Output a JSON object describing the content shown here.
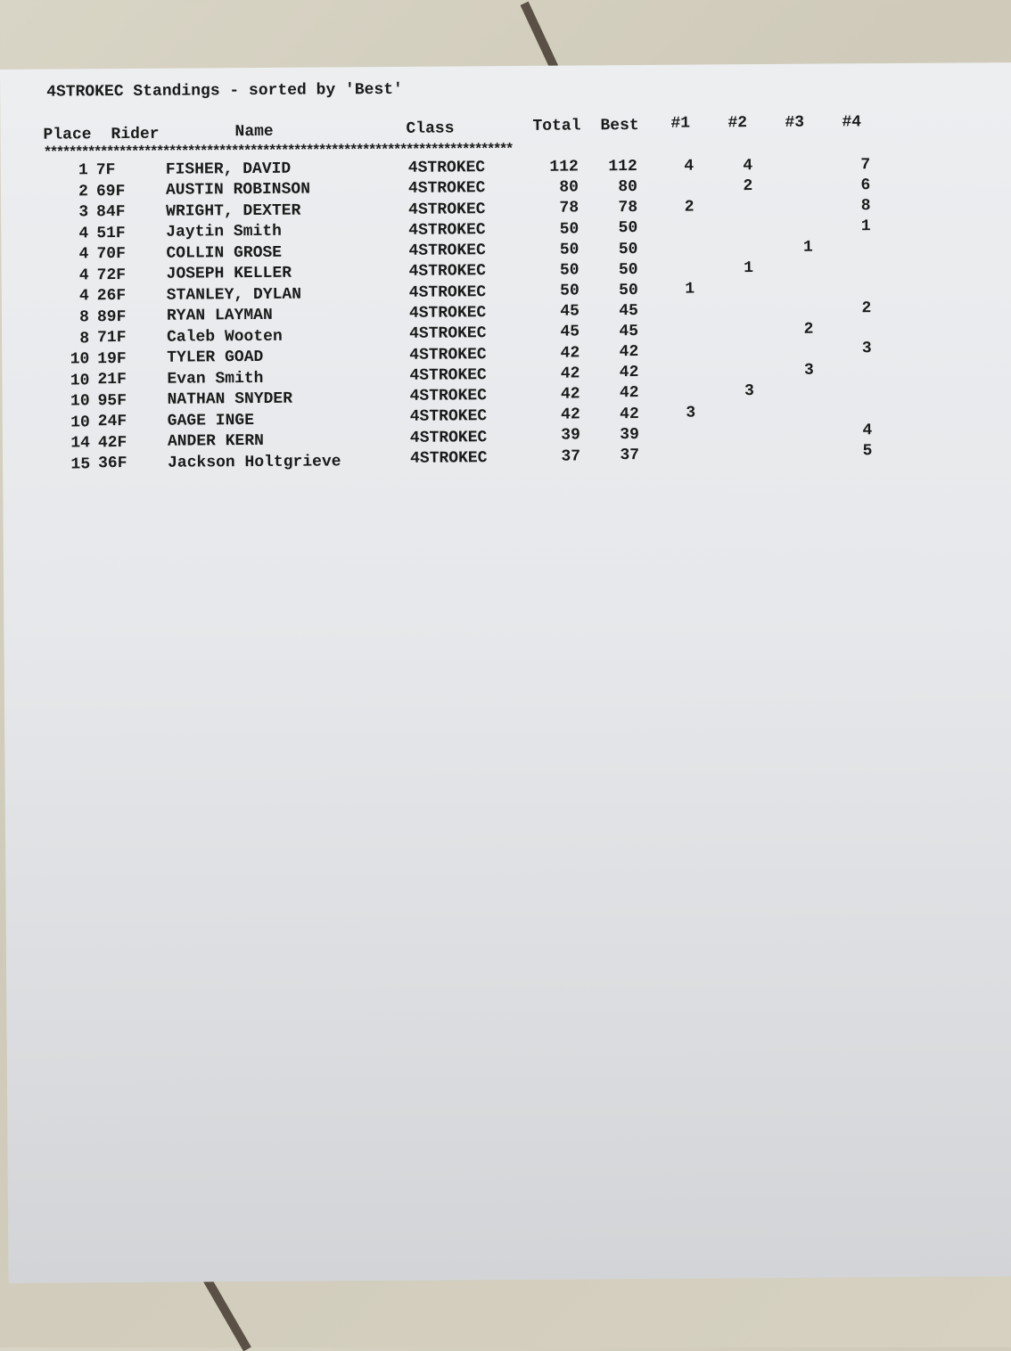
{
  "title": "4STROKEC Standings - sorted by 'Best'",
  "headers": {
    "place": "Place",
    "rider": "Rider",
    "name": "Name",
    "class": "Class",
    "total": "Total",
    "best": "Best",
    "r1": "#1",
    "r2": "#2",
    "r3": "#3",
    "r4": "#4"
  },
  "separator": "***************************************************************************",
  "rows": [
    {
      "place": "1",
      "rider": "7F",
      "name": "FISHER, DAVID",
      "class": "4STROKEC",
      "total": "112",
      "best": "112",
      "r1": "4",
      "r2": "4",
      "r3": "",
      "r4": "7"
    },
    {
      "place": "2",
      "rider": "69F",
      "name": "AUSTIN ROBINSON",
      "class": "4STROKEC",
      "total": "80",
      "best": "80",
      "r1": "",
      "r2": "2",
      "r3": "",
      "r4": "6"
    },
    {
      "place": "3",
      "rider": "84F",
      "name": "WRIGHT, DEXTER",
      "class": "4STROKEC",
      "total": "78",
      "best": "78",
      "r1": "2",
      "r2": "",
      "r3": "",
      "r4": "8"
    },
    {
      "place": "4",
      "rider": "51F",
      "name": "Jaytin Smith",
      "class": "4STROKEC",
      "total": "50",
      "best": "50",
      "r1": "",
      "r2": "",
      "r3": "",
      "r4": "1"
    },
    {
      "place": "4",
      "rider": "70F",
      "name": "COLLIN GROSE",
      "class": "4STROKEC",
      "total": "50",
      "best": "50",
      "r1": "",
      "r2": "",
      "r3": "1",
      "r4": ""
    },
    {
      "place": "4",
      "rider": "72F",
      "name": "JOSEPH KELLER",
      "class": "4STROKEC",
      "total": "50",
      "best": "50",
      "r1": "",
      "r2": "1",
      "r3": "",
      "r4": ""
    },
    {
      "place": "4",
      "rider": "26F",
      "name": "STANLEY, DYLAN",
      "class": "4STROKEC",
      "total": "50",
      "best": "50",
      "r1": "1",
      "r2": "",
      "r3": "",
      "r4": ""
    },
    {
      "place": "8",
      "rider": "89F",
      "name": "RYAN LAYMAN",
      "class": "4STROKEC",
      "total": "45",
      "best": "45",
      "r1": "",
      "r2": "",
      "r3": "",
      "r4": "2"
    },
    {
      "place": "8",
      "rider": "71F",
      "name": "Caleb Wooten",
      "class": "4STROKEC",
      "total": "45",
      "best": "45",
      "r1": "",
      "r2": "",
      "r3": "2",
      "r4": ""
    },
    {
      "place": "10",
      "rider": "19F",
      "name": "TYLER GOAD",
      "class": "4STROKEC",
      "total": "42",
      "best": "42",
      "r1": "",
      "r2": "",
      "r3": "",
      "r4": "3"
    },
    {
      "place": "10",
      "rider": "21F",
      "name": "Evan Smith",
      "class": "4STROKEC",
      "total": "42",
      "best": "42",
      "r1": "",
      "r2": "",
      "r3": "3",
      "r4": ""
    },
    {
      "place": "10",
      "rider": "95F",
      "name": "NATHAN SNYDER",
      "class": "4STROKEC",
      "total": "42",
      "best": "42",
      "r1": "",
      "r2": "3",
      "r3": "",
      "r4": ""
    },
    {
      "place": "10",
      "rider": "24F",
      "name": "GAGE INGE",
      "class": "4STROKEC",
      "total": "42",
      "best": "42",
      "r1": "3",
      "r2": "",
      "r3": "",
      "r4": ""
    },
    {
      "place": "14",
      "rider": "42F",
      "name": "ANDER KERN",
      "class": "4STROKEC",
      "total": "39",
      "best": "39",
      "r1": "",
      "r2": "",
      "r3": "",
      "r4": "4"
    },
    {
      "place": "15",
      "rider": "36F",
      "name": "Jackson Holtgrieve",
      "class": "4STROKEC",
      "total": "37",
      "best": "37",
      "r1": "",
      "r2": "",
      "r3": "",
      "r4": "5"
    }
  ]
}
